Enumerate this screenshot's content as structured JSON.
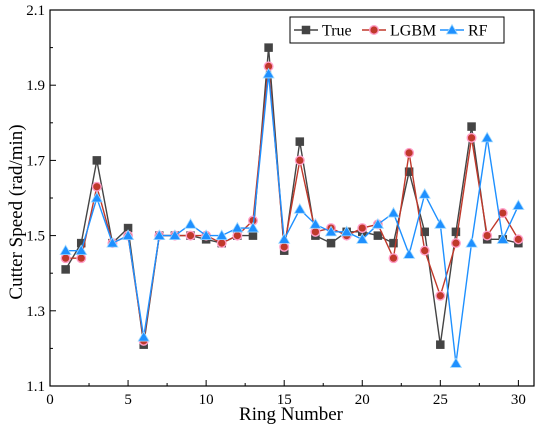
{
  "chart_data": {
    "type": "line",
    "xlabel": "Ring Number",
    "ylabel": "Cutter Speed (rad/min)",
    "xlim": [
      0,
      31
    ],
    "ylim": [
      1.1,
      2.1
    ],
    "xticks": [
      0,
      5,
      10,
      15,
      20,
      25,
      30
    ],
    "yticks": [
      1.1,
      1.3,
      1.5,
      1.7,
      1.9,
      2.1
    ],
    "xtick_labels": [
      "0",
      "5",
      "10",
      "15",
      "20",
      "25",
      "30"
    ],
    "ytick_labels": [
      "1.1",
      "1.3",
      "1.5",
      "1.7",
      "1.9",
      "2.1"
    ],
    "grid": false,
    "legend_position": "top-right",
    "x": [
      1,
      2,
      3,
      4,
      5,
      6,
      7,
      8,
      9,
      10,
      11,
      12,
      13,
      14,
      15,
      16,
      17,
      18,
      19,
      20,
      21,
      22,
      23,
      24,
      25,
      26,
      27,
      28,
      29,
      30
    ],
    "series": [
      {
        "name": "True",
        "color": "#444444",
        "marker": "square",
        "values": [
          1.41,
          1.48,
          1.7,
          1.48,
          1.52,
          1.21,
          1.5,
          1.5,
          1.5,
          1.49,
          1.48,
          1.5,
          1.5,
          2.0,
          1.46,
          1.75,
          1.5,
          1.48,
          1.51,
          1.51,
          1.5,
          1.48,
          1.67,
          1.51,
          1.21,
          1.51,
          1.79,
          1.49,
          1.49,
          1.48
        ]
      },
      {
        "name": "LGBM",
        "color": "#c0392b",
        "marker": "circle",
        "values": [
          1.44,
          1.44,
          1.63,
          1.48,
          1.5,
          1.22,
          1.5,
          1.5,
          1.5,
          1.5,
          1.48,
          1.5,
          1.54,
          1.95,
          1.47,
          1.7,
          1.51,
          1.52,
          1.5,
          1.52,
          1.53,
          1.44,
          1.72,
          1.46,
          1.34,
          1.48,
          1.76,
          1.5,
          1.56,
          1.49
        ]
      },
      {
        "name": "RF",
        "color": "#1e90ff",
        "marker": "triangle",
        "values": [
          1.46,
          1.46,
          1.6,
          1.48,
          1.5,
          1.23,
          1.5,
          1.5,
          1.53,
          1.5,
          1.5,
          1.52,
          1.52,
          1.93,
          1.49,
          1.57,
          1.53,
          1.51,
          1.51,
          1.49,
          1.53,
          1.56,
          1.45,
          1.61,
          1.53,
          1.16,
          1.48,
          1.76,
          1.49,
          1.58
        ]
      }
    ]
  }
}
